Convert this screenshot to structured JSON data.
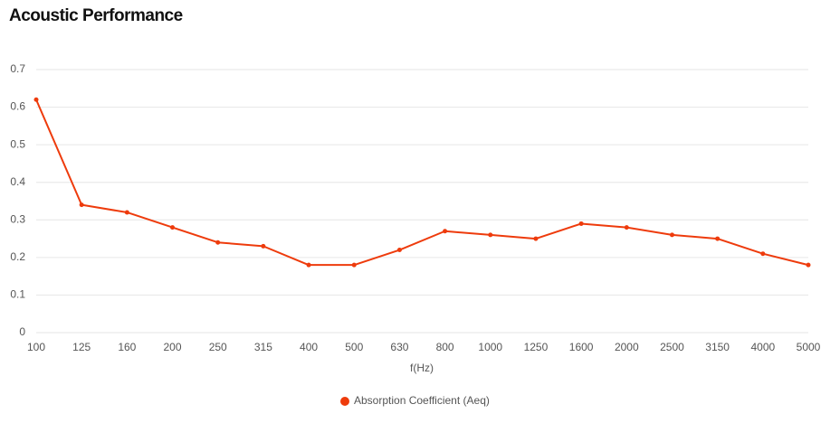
{
  "chart_data": {
    "type": "line",
    "title": "Acoustic Performance",
    "x_label": "f(Hz)",
    "categories": [
      "100",
      "125",
      "160",
      "200",
      "250",
      "315",
      "400",
      "500",
      "630",
      "800",
      "1000",
      "1250",
      "1600",
      "2000",
      "2500",
      "3150",
      "4000",
      "5000"
    ],
    "series": [
      {
        "name": "Absorption Coefficient (Aeq)",
        "color": "#ee3b0c",
        "values": [
          0.62,
          0.34,
          0.32,
          0.28,
          0.24,
          0.23,
          0.18,
          0.18,
          0.22,
          0.27,
          0.26,
          0.25,
          0.29,
          0.28,
          0.26,
          0.25,
          0.21,
          0.18
        ]
      }
    ],
    "ylim": [
      0,
      0.7
    ],
    "yticks": [
      0,
      0.1,
      0.2,
      0.3,
      0.4,
      0.5,
      0.6,
      0.7
    ],
    "grid": true,
    "legend": "bottom"
  }
}
